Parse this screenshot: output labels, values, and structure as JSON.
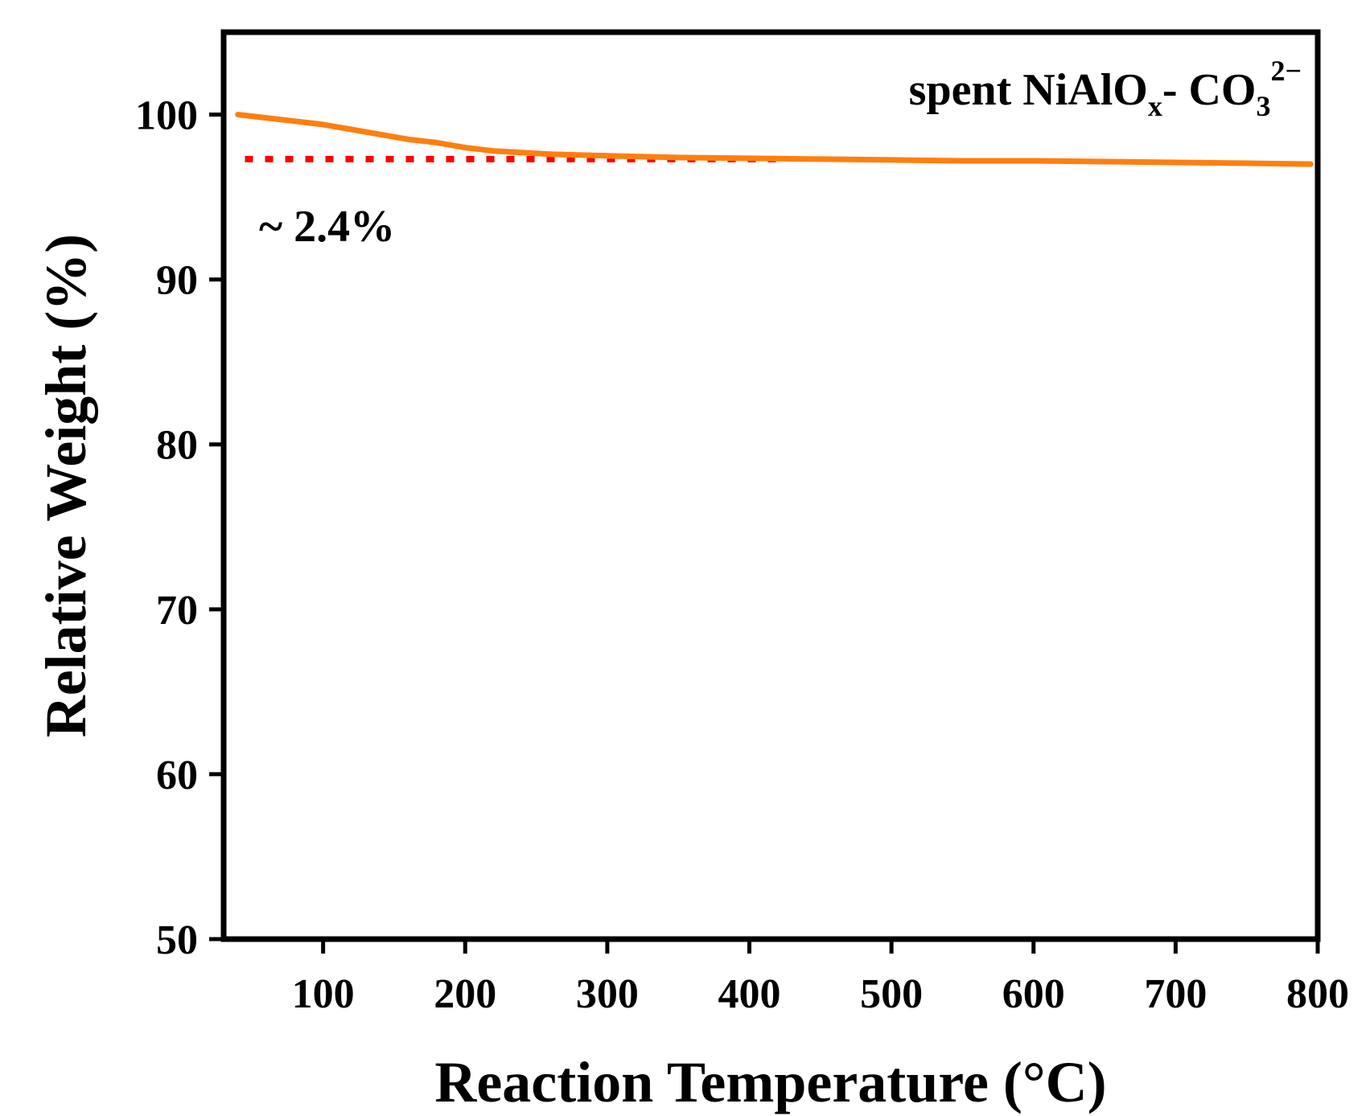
{
  "chart_data": {
    "type": "line",
    "xlabel": "Reaction Temperature (°C)",
    "ylabel": "Relative Weight (%)",
    "xlim": [
      30,
      800
    ],
    "ylim": [
      50,
      105
    ],
    "x_ticks": [
      100,
      200,
      300,
      400,
      500,
      600,
      700,
      800
    ],
    "y_ticks": [
      50,
      60,
      70,
      80,
      90,
      100
    ],
    "series": [
      {
        "name": "spent NiAlOx- CO3 2−",
        "color": "#ff7f0e",
        "x": [
          40,
          60,
          80,
          100,
          120,
          140,
          160,
          180,
          200,
          220,
          240,
          260,
          280,
          300,
          350,
          400,
          450,
          500,
          550,
          600,
          650,
          700,
          750,
          795
        ],
        "y": [
          100.0,
          99.8,
          99.6,
          99.4,
          99.1,
          98.8,
          98.5,
          98.3,
          98.0,
          97.8,
          97.7,
          97.6,
          97.55,
          97.5,
          97.4,
          97.35,
          97.3,
          97.25,
          97.2,
          97.2,
          97.15,
          97.1,
          97.05,
          97.0
        ]
      }
    ],
    "reference_line": {
      "y": 97.3,
      "x_start": 45,
      "x_end": 425,
      "color": "#ff0000",
      "style": "dotted"
    },
    "annotations": {
      "legend_main": "spent NiAlO",
      "legend_sub_x": "x",
      "legend_mid": "- CO",
      "legend_sub_3": "3",
      "legend_sup": "2−",
      "loss_label": "~ 2.4%"
    }
  }
}
